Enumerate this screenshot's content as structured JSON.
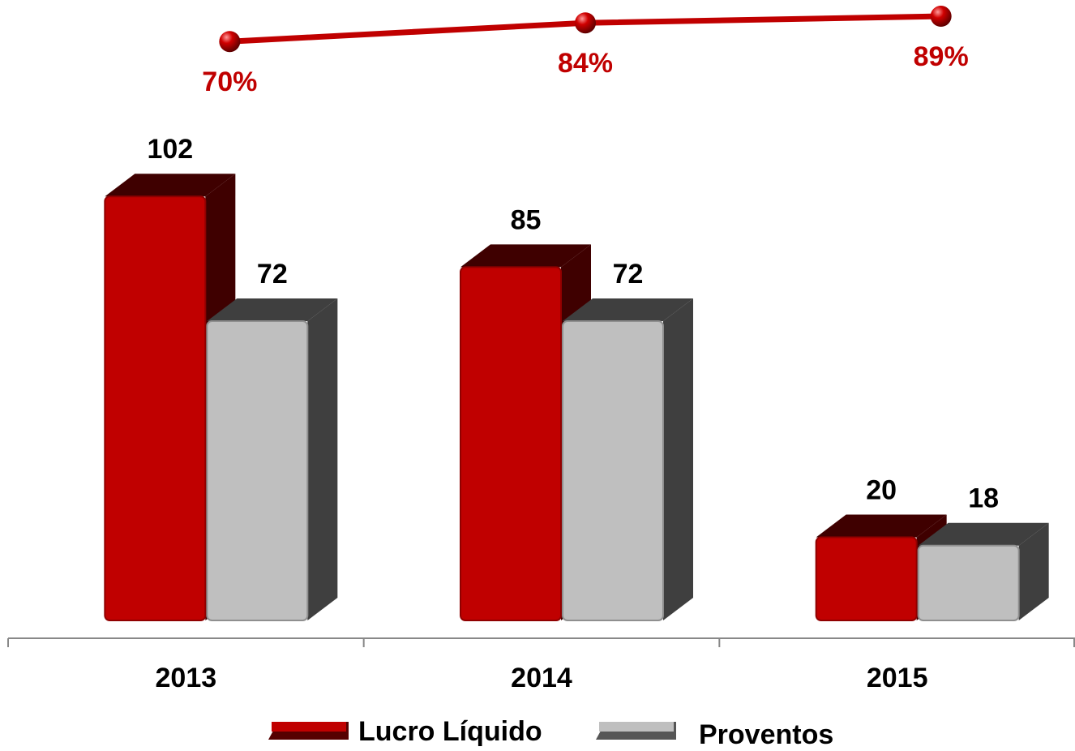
{
  "chart_data": {
    "type": "bar",
    "categories": [
      "2013",
      "2014",
      "2015"
    ],
    "series": [
      {
        "name": "Lucro Líquido",
        "color": "#c00000",
        "values": [
          102,
          85,
          20
        ]
      },
      {
        "name": "Proventos",
        "color": "#bfbfbf",
        "values": [
          72,
          72,
          18
        ]
      },
      {
        "type": "line",
        "axis": "y2",
        "color": "#c00000",
        "values": [
          70,
          84,
          89
        ],
        "value_labels": [
          "70%",
          "84%",
          "89%"
        ]
      }
    ],
    "ylim": [
      0,
      120
    ],
    "y2lim": [
      0,
      100
    ]
  }
}
